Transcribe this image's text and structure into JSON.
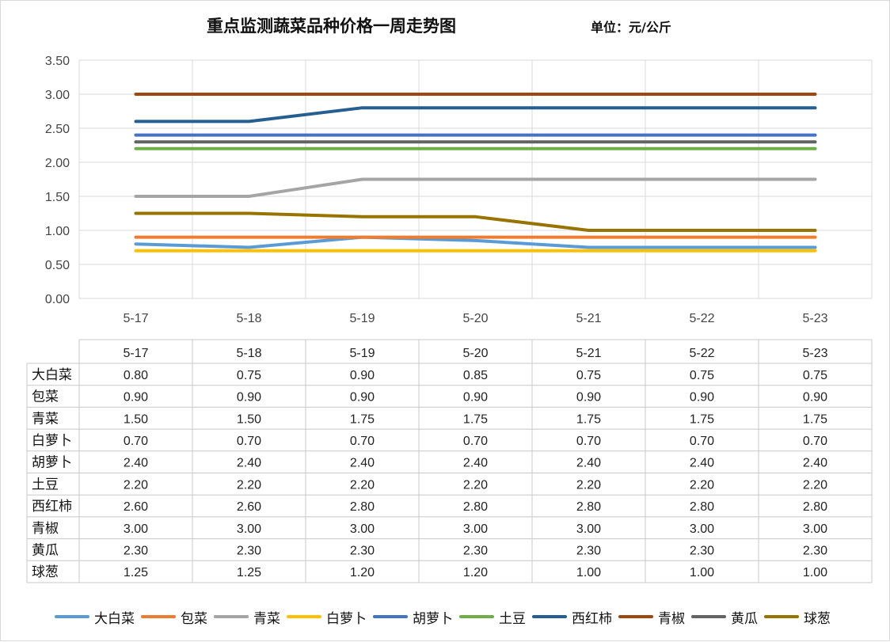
{
  "header": {
    "title": "重点监测蔬菜品种价格一周走势图",
    "unit": "单位：元/公斤"
  },
  "chart_data": {
    "type": "line",
    "title": "重点监测蔬菜品种价格一周走势图",
    "unit": "单位：元/公斤",
    "categories": [
      "5-17",
      "5-18",
      "5-19",
      "5-20",
      "5-21",
      "5-22",
      "5-23"
    ],
    "ylim": [
      0,
      3.5
    ],
    "yticks": [
      "0.00",
      "0.50",
      "1.00",
      "1.50",
      "2.00",
      "2.50",
      "3.00",
      "3.50"
    ],
    "grid": true,
    "legend_position": "bottom",
    "data_table": true,
    "series": [
      {
        "name": "大白菜",
        "color": "#5B9BD5",
        "values": [
          0.8,
          0.75,
          0.9,
          0.85,
          0.75,
          0.75,
          0.75
        ],
        "labels": [
          "0.80",
          "0.75",
          "0.90",
          "0.85",
          "0.75",
          "0.75",
          "0.75"
        ]
      },
      {
        "name": "包菜",
        "color": "#ED7D31",
        "values": [
          0.9,
          0.9,
          0.9,
          0.9,
          0.9,
          0.9,
          0.9
        ],
        "labels": [
          "0.90",
          "0.90",
          "0.90",
          "0.90",
          "0.90",
          "0.90",
          "0.90"
        ]
      },
      {
        "name": "青菜",
        "color": "#A5A5A5",
        "values": [
          1.5,
          1.5,
          1.75,
          1.75,
          1.75,
          1.75,
          1.75
        ],
        "labels": [
          "1.50",
          "1.50",
          "1.75",
          "1.75",
          "1.75",
          "1.75",
          "1.75"
        ]
      },
      {
        "name": "白萝卜",
        "color": "#FFC000",
        "values": [
          0.7,
          0.7,
          0.7,
          0.7,
          0.7,
          0.7,
          0.7
        ],
        "labels": [
          "0.70",
          "0.70",
          "0.70",
          "0.70",
          "0.70",
          "0.70",
          "0.70"
        ]
      },
      {
        "name": "胡萝卜",
        "color": "#4472C4",
        "values": [
          2.4,
          2.4,
          2.4,
          2.4,
          2.4,
          2.4,
          2.4
        ],
        "labels": [
          "2.40",
          "2.40",
          "2.40",
          "2.40",
          "2.40",
          "2.40",
          "2.40"
        ]
      },
      {
        "name": "土豆",
        "color": "#70AD47",
        "values": [
          2.2,
          2.2,
          2.2,
          2.2,
          2.2,
          2.2,
          2.2
        ],
        "labels": [
          "2.20",
          "2.20",
          "2.20",
          "2.20",
          "2.20",
          "2.20",
          "2.20"
        ]
      },
      {
        "name": "西红柿",
        "color": "#255E91",
        "values": [
          2.6,
          2.6,
          2.8,
          2.8,
          2.8,
          2.8,
          2.8
        ],
        "labels": [
          "2.60",
          "2.60",
          "2.80",
          "2.80",
          "2.80",
          "2.80",
          "2.80"
        ]
      },
      {
        "name": "青椒",
        "color": "#9E480E",
        "values": [
          3.0,
          3.0,
          3.0,
          3.0,
          3.0,
          3.0,
          3.0
        ],
        "labels": [
          "3.00",
          "3.00",
          "3.00",
          "3.00",
          "3.00",
          "3.00",
          "3.00"
        ]
      },
      {
        "name": "黄瓜",
        "color": "#636363",
        "values": [
          2.3,
          2.3,
          2.3,
          2.3,
          2.3,
          2.3,
          2.3
        ],
        "labels": [
          "2.30",
          "2.30",
          "2.30",
          "2.30",
          "2.30",
          "2.30",
          "2.30"
        ]
      },
      {
        "name": "球葱",
        "color": "#997300",
        "values": [
          1.25,
          1.25,
          1.2,
          1.2,
          1.0,
          1.0,
          1.0
        ],
        "labels": [
          "1.25",
          "1.25",
          "1.20",
          "1.20",
          "1.00",
          "1.00",
          "1.00"
        ]
      }
    ]
  }
}
